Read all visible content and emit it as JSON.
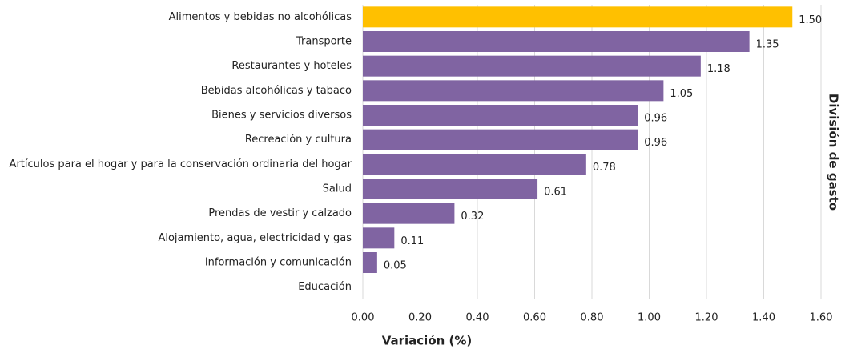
{
  "chart_data": {
    "type": "bar",
    "orientation": "horizontal",
    "xlabel": "Variación (%)",
    "ylabel": "División de gasto",
    "categories": [
      "Alimentos y bebidas no alcohólicas",
      "Transporte",
      "Restaurantes y hoteles",
      "Bebidas alcohólicas y tabaco",
      "Bienes y servicios diversos",
      "Recreación y cultura",
      "Artículos para el hogar y para la conservación ordinaria del hogar",
      "Salud",
      "Prendas de vestir y calzado",
      "Alojamiento, agua, electricidad y gas",
      "Información y comunicación",
      "Educación"
    ],
    "values": [
      1.5,
      1.35,
      1.18,
      1.05,
      0.96,
      0.96,
      0.78,
      0.61,
      0.32,
      0.11,
      0.05,
      null
    ],
    "value_labels": [
      "1.50",
      "1.35",
      "1.18",
      "1.05",
      "0.96",
      "0.96",
      "0.78",
      "0.61",
      "0.32",
      "0.11",
      "0.05",
      null
    ],
    "colors": [
      "#ffc000",
      "#8064a2",
      "#8064a2",
      "#8064a2",
      "#8064a2",
      "#8064a2",
      "#8064a2",
      "#8064a2",
      "#8064a2",
      "#8064a2",
      "#8064a2",
      "#8064a2"
    ],
    "xlim": [
      0,
      1.6
    ],
    "xticks": [
      {
        "value": 0,
        "label": "0.00"
      },
      {
        "value": 0.2,
        "label": "0.20"
      },
      {
        "value": 0.4,
        "label": "0.40"
      },
      {
        "value": 0.6,
        "label": "0.60"
      },
      {
        "value": 0.8,
        "label": "0.80"
      },
      {
        "value": 1,
        "label": "1.00"
      },
      {
        "value": 1.2,
        "label": "1.20"
      },
      {
        "value": 1.4,
        "label": "1.40"
      },
      {
        "value": 1.6,
        "label": "1.60"
      }
    ],
    "grid": true
  }
}
